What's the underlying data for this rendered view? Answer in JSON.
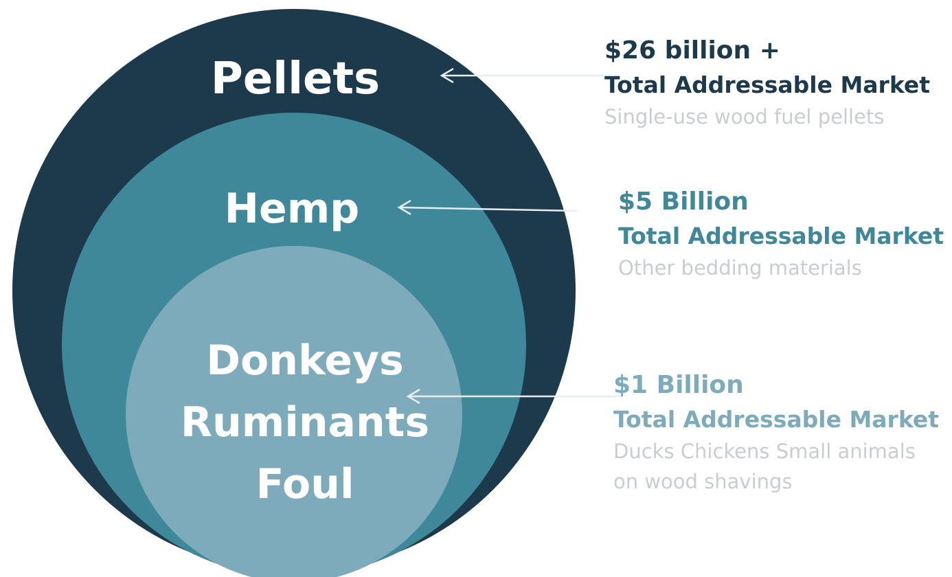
{
  "colors": {
    "outer": "#1d3a4d",
    "middle": "#3e8899",
    "inner": "#7eabbb",
    "arrow": "#e6eef2",
    "desc": "#c9cdd0"
  },
  "circles": {
    "outer_label": "Pellets",
    "middle_label": "Hemp",
    "inner_lines": [
      "Donkeys",
      "Ruminants",
      "Foul"
    ]
  },
  "callouts": [
    {
      "amount": "$26 billion +",
      "market": "Total Addressable Market",
      "description": [
        "Single-use  wood fuel pellets"
      ],
      "color": "#1d3a4d"
    },
    {
      "amount": "$5 Billion",
      "market": "Total Addressable Market",
      "description": [
        "Other bedding materials"
      ],
      "color": "#3e8899"
    },
    {
      "amount": "$1 Billion",
      "market": "Total  Addressable Market",
      "description": [
        "Ducks Chickens Small animals",
        "on wood shavings"
      ],
      "color": "#7eabbb"
    }
  ]
}
